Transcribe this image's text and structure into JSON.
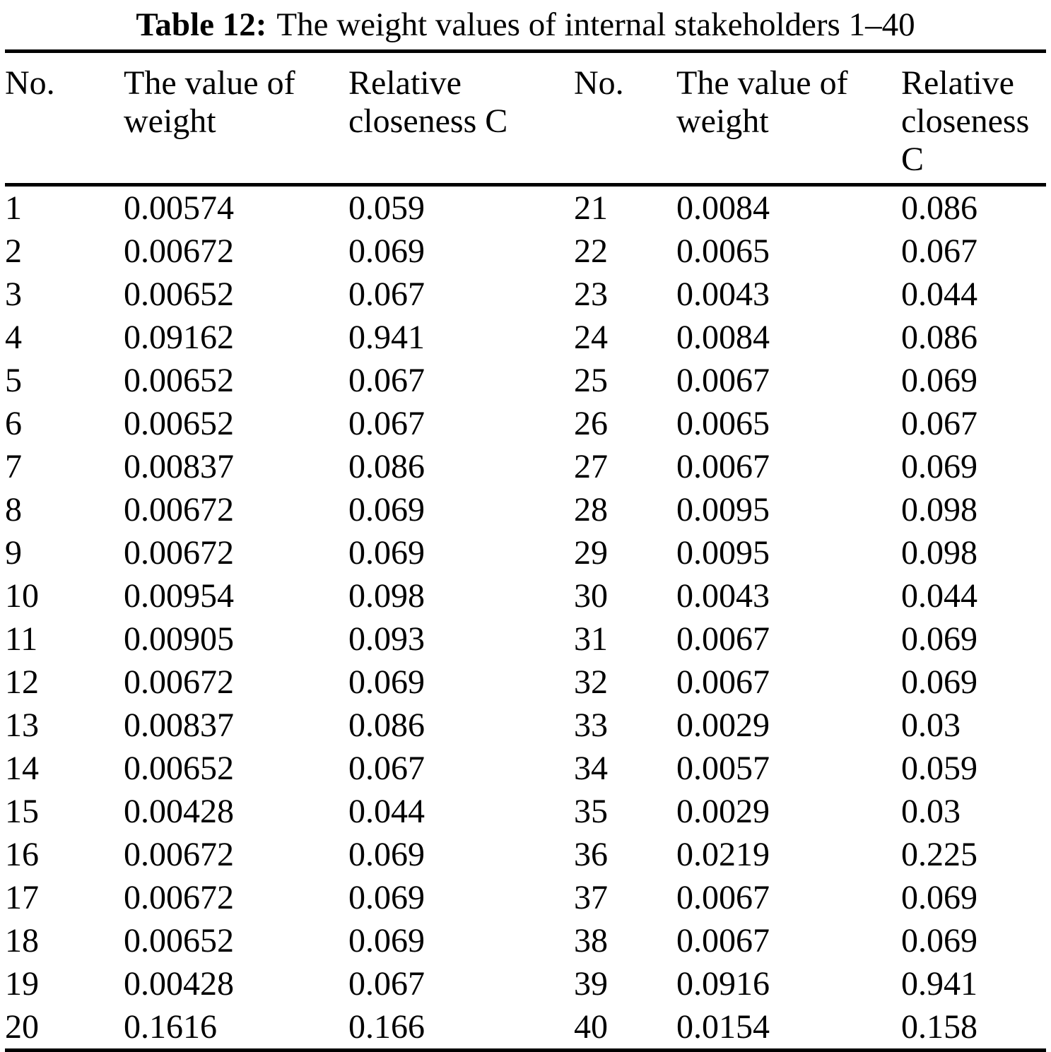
{
  "page": {
    "title_prefix": "Table 12:",
    "title_rest": "The weight values of internal stakeholders 1–40"
  },
  "table": {
    "columns": [
      "No.",
      "The value of weight",
      "Relative closeness C",
      "No.",
      "The value of weight",
      "Relative closeness C"
    ],
    "rows": [
      [
        "1",
        "0.00574",
        "0.059",
        "21",
        "0.0084",
        "0.086"
      ],
      [
        "2",
        "0.00672",
        "0.069",
        "22",
        "0.0065",
        "0.067"
      ],
      [
        "3",
        "0.00652",
        "0.067",
        "23",
        "0.0043",
        "0.044"
      ],
      [
        "4",
        "0.09162",
        "0.941",
        "24",
        "0.0084",
        "0.086"
      ],
      [
        "5",
        "0.00652",
        "0.067",
        "25",
        "0.0067",
        "0.069"
      ],
      [
        "6",
        "0.00652",
        "0.067",
        "26",
        "0.0065",
        "0.067"
      ],
      [
        "7",
        "0.00837",
        "0.086",
        "27",
        "0.0067",
        "0.069"
      ],
      [
        "8",
        "0.00672",
        "0.069",
        "28",
        "0.0095",
        "0.098"
      ],
      [
        "9",
        "0.00672",
        "0.069",
        "29",
        "0.0095",
        "0.098"
      ],
      [
        "10",
        "0.00954",
        "0.098",
        "30",
        "0.0043",
        "0.044"
      ],
      [
        "11",
        "0.00905",
        "0.093",
        "31",
        "0.0067",
        "0.069"
      ],
      [
        "12",
        "0.00672",
        "0.069",
        "32",
        "0.0067",
        "0.069"
      ],
      [
        "13",
        "0.00837",
        "0.086",
        "33",
        "0.0029",
        "0.03"
      ],
      [
        "14",
        "0.00652",
        "0.067",
        "34",
        "0.0057",
        "0.059"
      ],
      [
        "15",
        "0.00428",
        "0.044",
        "35",
        "0.0029",
        "0.03"
      ],
      [
        "16",
        "0.00672",
        "0.069",
        "36",
        "0.0219",
        "0.225"
      ],
      [
        "17",
        "0.00672",
        "0.069",
        "37",
        "0.0067",
        "0.069"
      ],
      [
        "18",
        "0.00652",
        "0.069",
        "38",
        "0.0067",
        "0.069"
      ],
      [
        "19",
        "0.00428",
        "0.067",
        "39",
        "0.0916",
        "0.941"
      ],
      [
        "20",
        "0.1616",
        "0.166",
        "40",
        "0.0154",
        "0.158"
      ]
    ]
  }
}
